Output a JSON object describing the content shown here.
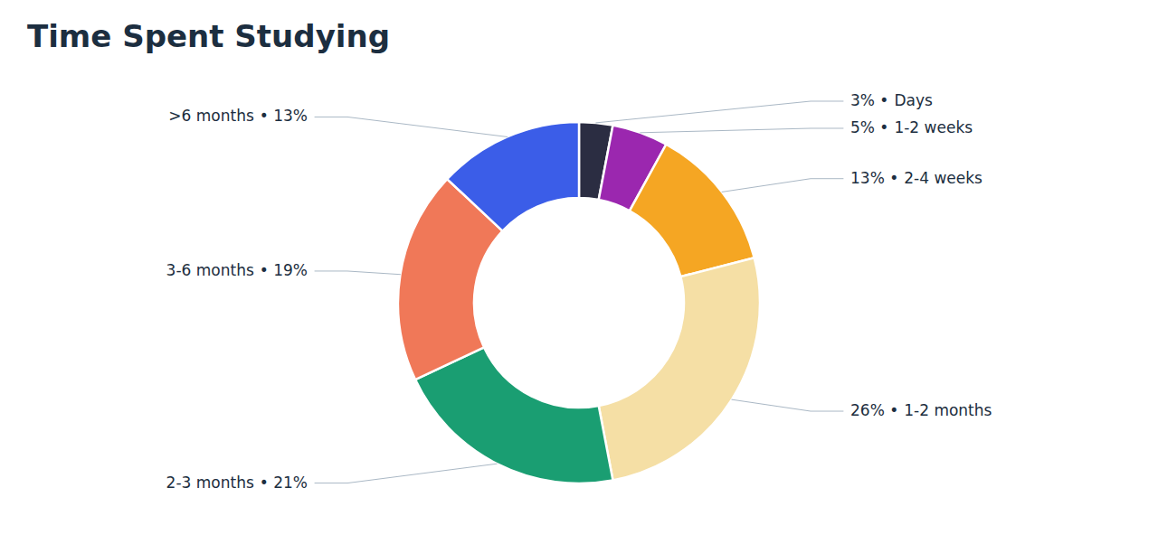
{
  "chart_data": {
    "type": "donut",
    "title": "Time Spent Studying",
    "categories": [
      "Days",
      "1-2 weeks",
      "2-4 weeks",
      "1-2 months",
      "2-3 months",
      "3-6 months",
      ">6 months"
    ],
    "values": [
      3,
      5,
      13,
      26,
      21,
      19,
      13
    ],
    "value_labels": [
      "3% •",
      "5% •",
      "13% •",
      "26% •",
      "• 21%",
      "• 19%",
      "• 13%"
    ],
    "colors": [
      "#2b2d42",
      "#9b27af",
      "#f5a623",
      "#f5dfa5",
      "#1a9e72",
      "#f07858",
      "#3b5de8"
    ],
    "data_labels": true
  }
}
